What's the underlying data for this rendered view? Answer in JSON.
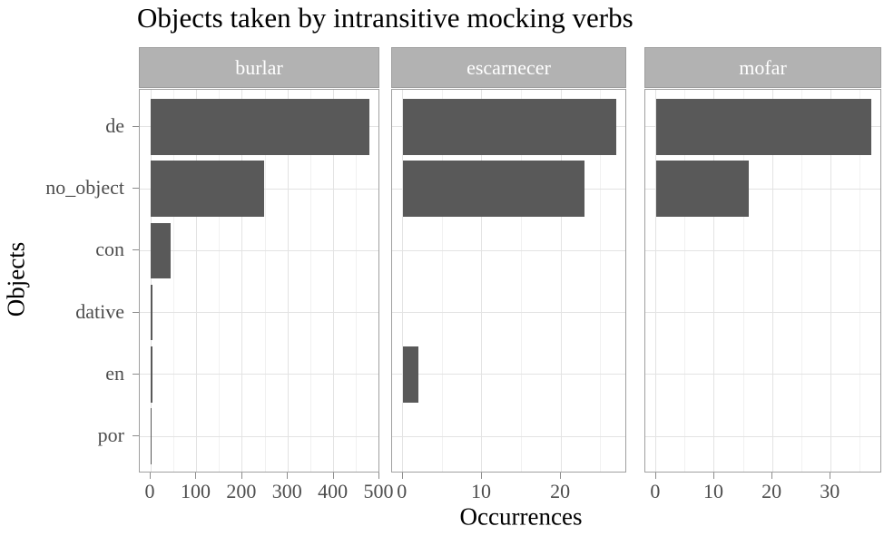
{
  "title": "Objects taken by intransitive mocking verbs",
  "colors": {
    "bar_fill": "#595959",
    "strip_bg": "#b2b2b2",
    "strip_text": "#ffffff",
    "panel_border": "#a0a0a0",
    "grid_major": "#e3e3e3",
    "grid_minor": "#f1f1f1",
    "tick_mark": "#8c8c8c",
    "tick_label": "#4d4d4d",
    "text": "#000000"
  },
  "chart_data": {
    "type": "bar",
    "orientation": "horizontal",
    "faceted": true,
    "title": "Objects taken by intransitive mocking verbs",
    "xlabel": "Occurrences",
    "ylabel": "Objects",
    "grid": true,
    "legend": false,
    "categories": [
      "de",
      "no_object",
      "con",
      "dative",
      "en",
      "por"
    ],
    "facets": [
      {
        "label": "burlar",
        "values": [
          478,
          248,
          44,
          3,
          3,
          1
        ],
        "xlim": [
          0,
          500
        ],
        "major_ticks": [
          0,
          100,
          200,
          300,
          400,
          500
        ],
        "minor_ticks": [
          50,
          150,
          250,
          350,
          450
        ],
        "xmax_data": 478
      },
      {
        "label": "escarnecer",
        "values": [
          27,
          23,
          0,
          0,
          2,
          0
        ],
        "xlim": [
          0,
          27
        ],
        "major_ticks": [
          0,
          10,
          20
        ],
        "minor_ticks": [
          5,
          15,
          25
        ],
        "xmax_data": 27
      },
      {
        "label": "mofar",
        "values": [
          37,
          16,
          0,
          0,
          0,
          0
        ],
        "xlim": [
          0,
          37
        ],
        "major_ticks": [
          0,
          10,
          20,
          30
        ],
        "minor_ticks": [
          5,
          15,
          25,
          35
        ],
        "xmax_data": 37
      }
    ]
  }
}
